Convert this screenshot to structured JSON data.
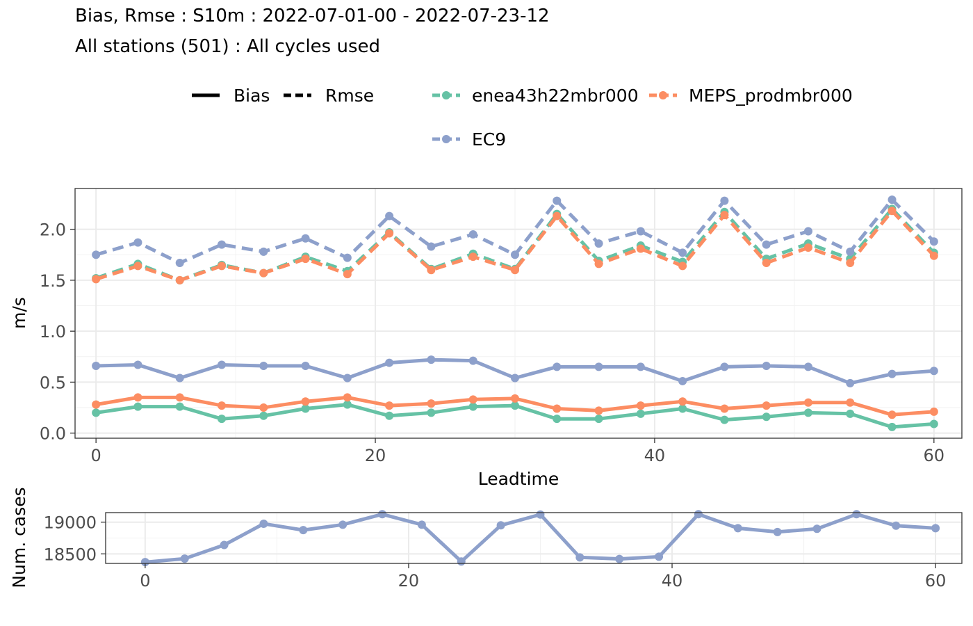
{
  "title_line1": "Bias, Rmse : S10m : 2022-07-01-00 - 2022-07-23-12",
  "title_line2": "All stations (501) : All cycles used",
  "legend": {
    "linetypes": [
      {
        "label": "Bias",
        "dash": "solid"
      },
      {
        "label": "Rmse",
        "dash": "dashed"
      }
    ],
    "models": [
      {
        "label": "enea43h22mbr000",
        "color": "#66c2a5"
      },
      {
        "label": "MEPS_prodmbr000",
        "color": "#fc8d62"
      },
      {
        "label": "EC9",
        "color": "#8da0cb"
      }
    ]
  },
  "chart_data": [
    {
      "type": "line",
      "xlabel": "Leadtime",
      "ylabel": "m/s",
      "xlim": [
        -1.5,
        62
      ],
      "ylim": [
        -0.05,
        2.4
      ],
      "xticks": [
        0,
        20,
        40,
        60
      ],
      "yticks": [
        0.0,
        0.5,
        1.0,
        1.5,
        2.0
      ],
      "ytick_labels": [
        "0.0",
        "0.5",
        "1.0",
        "1.5",
        "2.0"
      ],
      "grid": true,
      "x": [
        0,
        3,
        6,
        9,
        12,
        15,
        18,
        21,
        24,
        27,
        30,
        33,
        36,
        39,
        42,
        45,
        48,
        51,
        54,
        57,
        60
      ],
      "series": [
        {
          "name": "enea43h22mbr000",
          "metric": "Bias",
          "color": "#66c2a5",
          "values": [
            0.2,
            0.26,
            0.26,
            0.14,
            0.17,
            0.24,
            0.28,
            0.17,
            0.2,
            0.26,
            0.27,
            0.14,
            0.14,
            0.19,
            0.24,
            0.13,
            0.16,
            0.2,
            0.19,
            0.06,
            0.09
          ]
        },
        {
          "name": "MEPS_prodmbr000",
          "metric": "Bias",
          "color": "#fc8d62",
          "values": [
            0.28,
            0.35,
            0.35,
            0.27,
            0.25,
            0.31,
            0.35,
            0.27,
            0.29,
            0.33,
            0.34,
            0.24,
            0.22,
            0.27,
            0.31,
            0.24,
            0.27,
            0.3,
            0.3,
            0.18,
            0.21
          ]
        },
        {
          "name": "EC9",
          "metric": "Bias",
          "color": "#8da0cb",
          "values": [
            0.66,
            0.67,
            0.54,
            0.67,
            0.66,
            0.66,
            0.54,
            0.69,
            0.72,
            0.71,
            0.54,
            0.65,
            0.65,
            0.65,
            0.51,
            0.65,
            0.66,
            0.65,
            0.49,
            0.58,
            0.61
          ]
        },
        {
          "name": "enea43h22mbr000",
          "metric": "Rmse",
          "color": "#66c2a5",
          "values": [
            1.52,
            1.66,
            1.5,
            1.65,
            1.57,
            1.73,
            1.59,
            1.97,
            1.61,
            1.76,
            1.61,
            2.15,
            1.69,
            1.84,
            1.68,
            2.17,
            1.71,
            1.86,
            1.71,
            2.2,
            1.77
          ]
        },
        {
          "name": "MEPS_prodmbr000",
          "metric": "Rmse",
          "color": "#fc8d62",
          "values": [
            1.51,
            1.64,
            1.5,
            1.64,
            1.57,
            1.71,
            1.56,
            1.96,
            1.6,
            1.73,
            1.6,
            2.13,
            1.66,
            1.81,
            1.64,
            2.14,
            1.67,
            1.82,
            1.67,
            2.18,
            1.74
          ]
        },
        {
          "name": "EC9",
          "metric": "Rmse",
          "color": "#8da0cb",
          "values": [
            1.75,
            1.87,
            1.67,
            1.85,
            1.78,
            1.91,
            1.72,
            2.13,
            1.83,
            1.95,
            1.75,
            2.28,
            1.86,
            1.98,
            1.77,
            2.28,
            1.85,
            1.98,
            1.78,
            2.29,
            1.88
          ]
        }
      ]
    },
    {
      "type": "line",
      "ylabel": "Num. cases",
      "xlim": [
        -3,
        62
      ],
      "ylim": [
        18350,
        19150
      ],
      "xticks": [
        0,
        20,
        40,
        60
      ],
      "yticks": [
        18500,
        19000
      ],
      "ytick_labels": [
        "18500",
        "19000"
      ],
      "grid": true,
      "x": [
        0,
        3,
        6,
        9,
        12,
        15,
        18,
        21,
        24,
        27,
        30,
        33,
        36,
        39,
        42,
        45,
        48,
        51,
        54,
        57,
        60
      ],
      "series": [
        {
          "name": "EC9",
          "color": "#8da0cb",
          "values": [
            18370,
            18425,
            18640,
            18975,
            18875,
            18960,
            19125,
            18960,
            18380,
            18950,
            19120,
            18445,
            18420,
            18455,
            19125,
            18905,
            18845,
            18895,
            19125,
            18945,
            18905
          ]
        }
      ]
    }
  ]
}
